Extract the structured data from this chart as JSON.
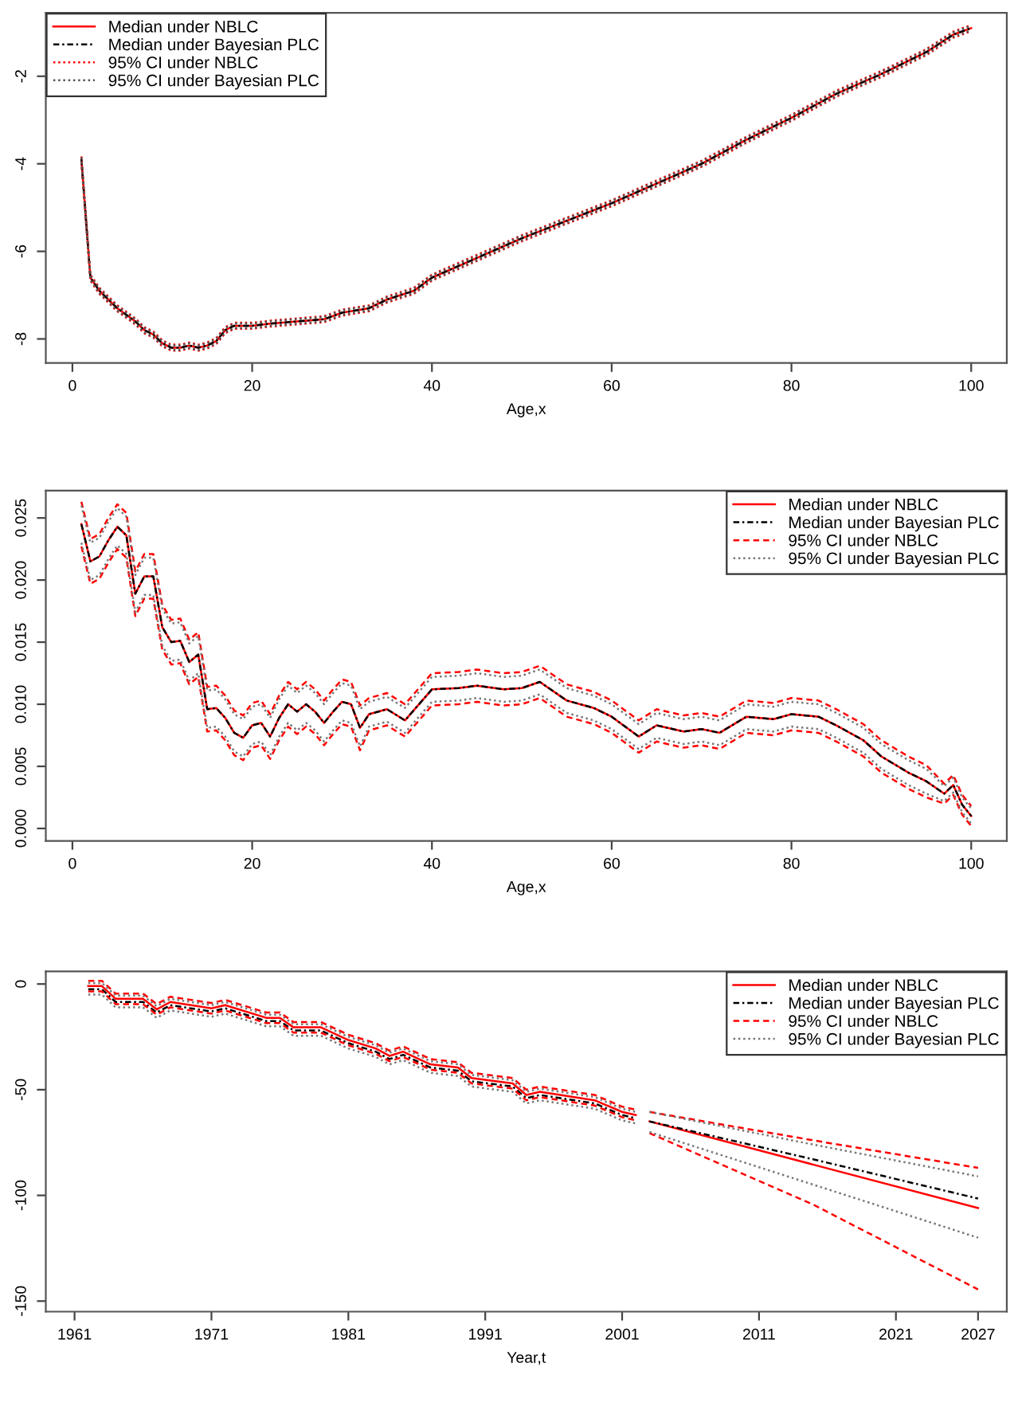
{
  "chart_data": [
    {
      "type": "line",
      "xlabel": "Age,x",
      "xlim": [
        -2.96,
        103.96
      ],
      "xticks": [
        0,
        20,
        40,
        60,
        80,
        100
      ],
      "ylim": [
        -8.55,
        -0.55
      ],
      "yticks": [
        -8,
        -6,
        -4,
        -2
      ],
      "legend": "top left",
      "grid": false,
      "x": [
        1,
        2,
        3,
        4,
        5,
        6,
        7,
        8,
        9,
        10,
        11,
        12,
        13,
        14,
        15,
        16,
        17,
        18,
        20,
        22,
        25,
        28,
        30,
        33,
        35,
        38,
        40,
        45,
        50,
        55,
        60,
        65,
        70,
        75,
        80,
        85,
        90,
        95,
        98,
        100
      ],
      "series": [
        {
          "name": "Median under NBLC",
          "color": "#ff0000",
          "line_style": "solid",
          "values": [
            -3.9,
            -6.6,
            -6.9,
            -7.1,
            -7.3,
            -7.45,
            -7.6,
            -7.8,
            -7.9,
            -8.1,
            -8.2,
            -8.2,
            -8.15,
            -8.2,
            -8.15,
            -8.05,
            -7.8,
            -7.7,
            -7.7,
            -7.65,
            -7.6,
            -7.55,
            -7.4,
            -7.3,
            -7.1,
            -6.9,
            -6.6,
            -6.15,
            -5.7,
            -5.3,
            -4.9,
            -4.45,
            -4.0,
            -3.45,
            -2.95,
            -2.4,
            -1.95,
            -1.45,
            -1.05,
            -0.9
          ]
        },
        {
          "name": "Median under Bayesian PLC",
          "color": "#000000",
          "line_style": "dashdot",
          "values": [
            -3.9,
            -6.6,
            -6.9,
            -7.1,
            -7.3,
            -7.45,
            -7.6,
            -7.8,
            -7.9,
            -8.1,
            -8.2,
            -8.2,
            -8.15,
            -8.2,
            -8.15,
            -8.05,
            -7.8,
            -7.7,
            -7.7,
            -7.65,
            -7.6,
            -7.55,
            -7.4,
            -7.3,
            -7.1,
            -6.9,
            -6.6,
            -6.15,
            -5.7,
            -5.3,
            -4.9,
            -4.45,
            -4.0,
            -3.45,
            -2.95,
            -2.4,
            -1.95,
            -1.45,
            -1.05,
            -0.9
          ]
        },
        {
          "name": "95% CI under NBLC",
          "color": "#ff0000",
          "line_style": "dotted",
          "values": [
            -3.83,
            -6.53,
            -6.83,
            -7.03,
            -7.23,
            -7.38,
            -7.53,
            -7.73,
            -7.83,
            -8.03,
            -8.13,
            -8.13,
            -8.08,
            -8.13,
            -8.08,
            -7.98,
            -7.73,
            -7.63,
            -7.63,
            -7.58,
            -7.53,
            -7.48,
            -7.33,
            -7.23,
            -7.03,
            -6.83,
            -6.53,
            -6.08,
            -5.63,
            -5.23,
            -4.83,
            -4.38,
            -3.93,
            -3.38,
            -2.88,
            -2.33,
            -1.88,
            -1.38,
            -0.98,
            -0.83
          ]
        },
        {
          "color": "#ff0000",
          "line_style": "dotted",
          "values": [
            -3.97,
            -6.67,
            -6.97,
            -7.17,
            -7.37,
            -7.52,
            -7.67,
            -7.87,
            -7.97,
            -8.17,
            -8.27,
            -8.27,
            -8.22,
            -8.27,
            -8.22,
            -8.12,
            -7.87,
            -7.77,
            -7.77,
            -7.72,
            -7.67,
            -7.62,
            -7.47,
            -7.37,
            -7.17,
            -6.97,
            -6.67,
            -6.22,
            -5.77,
            -5.37,
            -4.97,
            -4.52,
            -4.07,
            -3.52,
            -3.02,
            -2.47,
            -2.02,
            -1.52,
            -1.12,
            -0.97
          ]
        },
        {
          "name": "95% CI under Bayesian PLC",
          "color": "#555555",
          "line_style": "dotted",
          "values": [
            -3.85,
            -6.55,
            -6.85,
            -7.05,
            -7.25,
            -7.4,
            -7.55,
            -7.75,
            -7.85,
            -8.05,
            -8.15,
            -8.15,
            -8.1,
            -8.15,
            -8.1,
            -8.0,
            -7.75,
            -7.65,
            -7.65,
            -7.6,
            -7.55,
            -7.5,
            -7.35,
            -7.25,
            -7.05,
            -6.85,
            -6.55,
            -6.1,
            -5.65,
            -5.25,
            -4.85,
            -4.4,
            -3.95,
            -3.4,
            -2.9,
            -2.35,
            -1.9,
            -1.4,
            -1.0,
            -0.85
          ]
        },
        {
          "color": "#555555",
          "line_style": "dotted",
          "values": [
            -3.95,
            -6.65,
            -6.95,
            -7.15,
            -7.35,
            -7.5,
            -7.65,
            -7.85,
            -7.95,
            -8.15,
            -8.25,
            -8.25,
            -8.2,
            -8.25,
            -8.2,
            -8.1,
            -7.85,
            -7.75,
            -7.75,
            -7.7,
            -7.65,
            -7.6,
            -7.45,
            -7.35,
            -7.15,
            -6.95,
            -6.65,
            -6.2,
            -5.75,
            -5.35,
            -4.95,
            -4.5,
            -4.05,
            -3.5,
            -3.0,
            -2.45,
            -2.0,
            -1.5,
            -1.1,
            -0.95
          ]
        }
      ]
    },
    {
      "type": "line",
      "xlabel": "Age,x",
      "xlim": [
        -2.96,
        103.96
      ],
      "xticks": [
        0,
        20,
        40,
        60,
        80,
        100
      ],
      "ylim": [
        -0.001,
        0.0272
      ],
      "yticks": [
        {
          "value": 0,
          "label": "0.000"
        },
        {
          "value": 0.005,
          "label": "0.005"
        },
        {
          "value": 0.01,
          "label": "0.010"
        },
        {
          "value": 0.015,
          "label": "0.015"
        },
        {
          "value": 0.02,
          "label": "0.020"
        },
        {
          "value": 0.025,
          "label": "0.025"
        }
      ],
      "legend": "top right",
      "grid": false,
      "x": [
        1,
        2,
        3,
        4,
        5,
        6,
        7,
        8,
        9,
        10,
        11,
        12,
        13,
        14,
        15,
        16,
        17,
        18,
        19,
        20,
        21,
        22,
        23,
        24,
        25,
        26,
        27,
        28,
        29,
        30,
        31,
        32,
        33,
        35,
        37,
        40,
        43,
        45,
        48,
        50,
        52,
        55,
        58,
        60,
        63,
        65,
        68,
        70,
        72,
        75,
        78,
        80,
        83,
        85,
        88,
        90,
        93,
        95,
        97,
        98,
        99,
        100
      ],
      "series": [
        {
          "name": "Median under NBLC",
          "color": "#ff0000",
          "line_style": "solid",
          "values": [
            0.0245,
            0.0215,
            0.0219,
            0.0232,
            0.0243,
            0.0236,
            0.0189,
            0.0203,
            0.0203,
            0.0162,
            0.015,
            0.0151,
            0.0134,
            0.014,
            0.0096,
            0.0097,
            0.0089,
            0.0077,
            0.0073,
            0.0083,
            0.0085,
            0.0074,
            0.0089,
            0.01,
            0.0094,
            0.01,
            0.0094,
            0.0085,
            0.0094,
            0.0102,
            0.01,
            0.0081,
            0.0092,
            0.0096,
            0.0087,
            0.0112,
            0.0113,
            0.0115,
            0.0112,
            0.0113,
            0.0118,
            0.0103,
            0.0097,
            0.009,
            0.0074,
            0.0083,
            0.0078,
            0.008,
            0.0077,
            0.009,
            0.0088,
            0.0092,
            0.009,
            0.0083,
            0.0071,
            0.0058,
            0.0045,
            0.0038,
            0.0028,
            0.0035,
            0.0019,
            0.001
          ]
        },
        {
          "name": "Median under Bayesian PLC",
          "color": "#000000",
          "line_style": "dashdot",
          "values": [
            0.0245,
            0.0215,
            0.0219,
            0.0232,
            0.0243,
            0.0236,
            0.0189,
            0.0203,
            0.0203,
            0.0162,
            0.015,
            0.0151,
            0.0134,
            0.014,
            0.0096,
            0.0097,
            0.0089,
            0.0077,
            0.0073,
            0.0083,
            0.0085,
            0.0074,
            0.0089,
            0.01,
            0.0094,
            0.01,
            0.0094,
            0.0085,
            0.0094,
            0.0102,
            0.01,
            0.0081,
            0.0092,
            0.0096,
            0.0087,
            0.0112,
            0.0113,
            0.0115,
            0.0112,
            0.0113,
            0.0118,
            0.0103,
            0.0097,
            0.009,
            0.0074,
            0.0083,
            0.0078,
            0.008,
            0.0077,
            0.009,
            0.0088,
            0.0092,
            0.009,
            0.0083,
            0.0071,
            0.0058,
            0.0045,
            0.0038,
            0.0028,
            0.0035,
            0.0019,
            0.001
          ]
        },
        {
          "name": "95% CI under NBLC",
          "color": "#ff0000",
          "line_style": "dashed",
          "values": [
            0.0263,
            0.0233,
            0.0237,
            0.025,
            0.0261,
            0.0254,
            0.0207,
            0.0221,
            0.0221,
            0.018,
            0.0168,
            0.0169,
            0.0152,
            0.0158,
            0.0114,
            0.0115,
            0.0107,
            0.0095,
            0.0091,
            0.0101,
            0.0103,
            0.0092,
            0.0107,
            0.0118,
            0.0112,
            0.0118,
            0.0112,
            0.0103,
            0.0112,
            0.012,
            0.0118,
            0.0099,
            0.0105,
            0.0109,
            0.01,
            0.0125,
            0.0126,
            0.0128,
            0.0125,
            0.0126,
            0.0131,
            0.0116,
            0.011,
            0.0103,
            0.0087,
            0.0096,
            0.0091,
            0.0093,
            0.009,
            0.0103,
            0.0101,
            0.0105,
            0.0103,
            0.0096,
            0.0084,
            0.0071,
            0.0058,
            0.0051,
            0.0036,
            0.0043,
            0.0027,
            0.0018
          ]
        },
        {
          "color": "#ff0000",
          "line_style": "dashed",
          "values": [
            0.0227,
            0.0197,
            0.0201,
            0.0214,
            0.0225,
            0.0218,
            0.0171,
            0.0185,
            0.0185,
            0.0144,
            0.0132,
            0.0133,
            0.0116,
            0.0122,
            0.0078,
            0.0079,
            0.0071,
            0.0059,
            0.0055,
            0.0065,
            0.0067,
            0.0056,
            0.0071,
            0.0082,
            0.0076,
            0.0082,
            0.0076,
            0.0067,
            0.0076,
            0.0084,
            0.0082,
            0.0063,
            0.0079,
            0.0083,
            0.0074,
            0.0099,
            0.01,
            0.0102,
            0.0099,
            0.01,
            0.0105,
            0.009,
            0.0084,
            0.0077,
            0.0061,
            0.007,
            0.0065,
            0.0067,
            0.0064,
            0.0077,
            0.0075,
            0.0079,
            0.0077,
            0.007,
            0.0058,
            0.0045,
            0.0032,
            0.0025,
            0.002,
            0.0027,
            0.0011,
            0.0002
          ]
        },
        {
          "name": "95% CI under Bayesian PLC",
          "color": "#777777",
          "line_style": "dotted",
          "values": [
            0.026,
            0.023,
            0.0234,
            0.0247,
            0.0258,
            0.0251,
            0.0204,
            0.0218,
            0.0218,
            0.0177,
            0.0165,
            0.0166,
            0.0149,
            0.0155,
            0.0111,
            0.0112,
            0.0104,
            0.0092,
            0.0088,
            0.0098,
            0.01,
            0.0089,
            0.0104,
            0.0115,
            0.0109,
            0.0115,
            0.0109,
            0.01,
            0.0109,
            0.0117,
            0.0115,
            0.0096,
            0.0102,
            0.0106,
            0.0097,
            0.0122,
            0.0123,
            0.0125,
            0.0122,
            0.0123,
            0.0128,
            0.0113,
            0.0107,
            0.01,
            0.0084,
            0.0093,
            0.0088,
            0.009,
            0.0087,
            0.01,
            0.0098,
            0.0102,
            0.01,
            0.0093,
            0.0081,
            0.0068,
            0.0055,
            0.0048,
            0.0034,
            0.0041,
            0.0025,
            0.0016
          ]
        },
        {
          "color": "#777777",
          "line_style": "dotted",
          "values": [
            0.023,
            0.02,
            0.0204,
            0.0217,
            0.0228,
            0.0221,
            0.0174,
            0.0188,
            0.0188,
            0.0147,
            0.0135,
            0.0136,
            0.0119,
            0.0125,
            0.0081,
            0.0082,
            0.0074,
            0.0062,
            0.0058,
            0.0068,
            0.007,
            0.0059,
            0.0074,
            0.0085,
            0.0079,
            0.0085,
            0.0079,
            0.007,
            0.0079,
            0.0087,
            0.0085,
            0.0066,
            0.0082,
            0.0086,
            0.0077,
            0.0102,
            0.0103,
            0.0105,
            0.0102,
            0.0103,
            0.0108,
            0.0093,
            0.0087,
            0.008,
            0.0064,
            0.0073,
            0.0068,
            0.007,
            0.0067,
            0.008,
            0.0078,
            0.0082,
            0.008,
            0.0073,
            0.0061,
            0.0048,
            0.0035,
            0.0028,
            0.0022,
            0.0029,
            0.0013,
            0.0004
          ]
        }
      ]
    },
    {
      "type": "line",
      "xlabel": "Year,t",
      "xlim": [
        1958.9,
        2029.1
      ],
      "xticks": [
        1961,
        1971,
        1981,
        1991,
        2001,
        2011,
        2021,
        2027
      ],
      "ylim": [
        -155,
        6
      ],
      "yticks": [
        -150,
        -100,
        -50,
        0
      ],
      "legend": "top right",
      "grid": false,
      "x": [
        1962,
        1963,
        1964,
        1966,
        1967,
        1968,
        1971,
        1972,
        1975,
        1976,
        1977,
        1979,
        1981,
        1983,
        1984,
        1985,
        1987,
        1989,
        1990,
        1993,
        1994,
        1995,
        1999,
        2001,
        2002
      ],
      "series": [
        {
          "name": "Median under NBLC",
          "color": "#ff0000",
          "line_style": "solid",
          "values": [
            -1,
            -1,
            -7,
            -7,
            -12,
            -8.5,
            -11.5,
            -10,
            -16,
            -16,
            -20.5,
            -20.5,
            -26.5,
            -30.5,
            -34,
            -32,
            -38,
            -39.5,
            -44.5,
            -47,
            -52.5,
            -51,
            -55,
            -60.5,
            -62
          ]
        },
        {
          "name": "Median under Bayesian PLC",
          "color": "#000000",
          "line_style": "dashdot",
          "values": [
            -2.5,
            -2.5,
            -8.5,
            -8.5,
            -13.5,
            -10,
            -13,
            -11.5,
            -17.5,
            -17.5,
            -22,
            -22,
            -28,
            -32,
            -35.5,
            -33.5,
            -39.5,
            -41,
            -46,
            -48.5,
            -54,
            -52.5,
            -56.5,
            -62,
            -63.5
          ]
        },
        {
          "name": "95% CI under NBLC",
          "color": "#ff0000",
          "line_style": "dashed",
          "values": [
            1.5,
            1.5,
            -4.5,
            -4.5,
            -9.5,
            -6,
            -9,
            -7.5,
            -13.5,
            -13.5,
            -18,
            -18,
            -24,
            -28,
            -31.5,
            -29.5,
            -35.5,
            -37,
            -42,
            -44.5,
            -50,
            -48.5,
            -52.5,
            -58,
            -59.5
          ]
        },
        {
          "color": "#ff0000",
          "line_style": "dashed",
          "values": [
            -3.5,
            -3.5,
            -9.5,
            -9.5,
            -14.5,
            -11,
            -14,
            -12.5,
            -18.5,
            -18.5,
            -23,
            -23,
            -29,
            -33,
            -36.5,
            -34.5,
            -40.5,
            -42,
            -47,
            -49.5,
            -55,
            -53.5,
            -57.5,
            -63,
            -64.5
          ]
        },
        {
          "name": "95% CI under Bayesian PLC",
          "color": "#777777",
          "line_style": "dotted",
          "values": [
            0.5,
            0.5,
            -5.5,
            -5.5,
            -10.5,
            -7,
            -10,
            -8.5,
            -14.5,
            -14.5,
            -19,
            -19,
            -25,
            -29,
            -32.5,
            -30.5,
            -36.5,
            -38,
            -43,
            -45.5,
            -51,
            -49.5,
            -53.5,
            -59,
            -60.5
          ]
        },
        {
          "color": "#777777",
          "line_style": "dotted",
          "values": [
            -5,
            -5,
            -11,
            -11,
            -16,
            -12.5,
            -15.5,
            -14,
            -20,
            -20,
            -24.5,
            -24.5,
            -30.5,
            -34.5,
            -38,
            -36,
            -42,
            -43.5,
            -48.5,
            -51,
            -56.5,
            -55,
            -59,
            -64.5,
            -66
          ]
        },
        {
          "color": "#ff0000",
          "line_style": "solid",
          "x": [
            2003,
            2015,
            2027
          ],
          "values": [
            -65,
            -85.5,
            -106
          ]
        },
        {
          "color": "#000000",
          "line_style": "dashdot",
          "x": [
            2003,
            2015,
            2027
          ],
          "values": [
            -65,
            -83,
            -101.5
          ]
        },
        {
          "color": "#ff0000",
          "line_style": "dashed",
          "x": [
            2003,
            2015,
            2027
          ],
          "values": [
            -60.5,
            -74,
            -87
          ]
        },
        {
          "color": "#ff0000",
          "line_style": "dashed",
          "x": [
            2003,
            2015,
            2027
          ],
          "values": [
            -70.5,
            -104.5,
            -144.5
          ]
        },
        {
          "color": "#777777",
          "line_style": "dotted",
          "x": [
            2003,
            2015,
            2027
          ],
          "values": [
            -60.5,
            -76,
            -91
          ]
        },
        {
          "color": "#777777",
          "line_style": "dotted",
          "x": [
            2003,
            2015,
            2027
          ],
          "values": [
            -70,
            -95,
            -120
          ]
        }
      ]
    }
  ]
}
